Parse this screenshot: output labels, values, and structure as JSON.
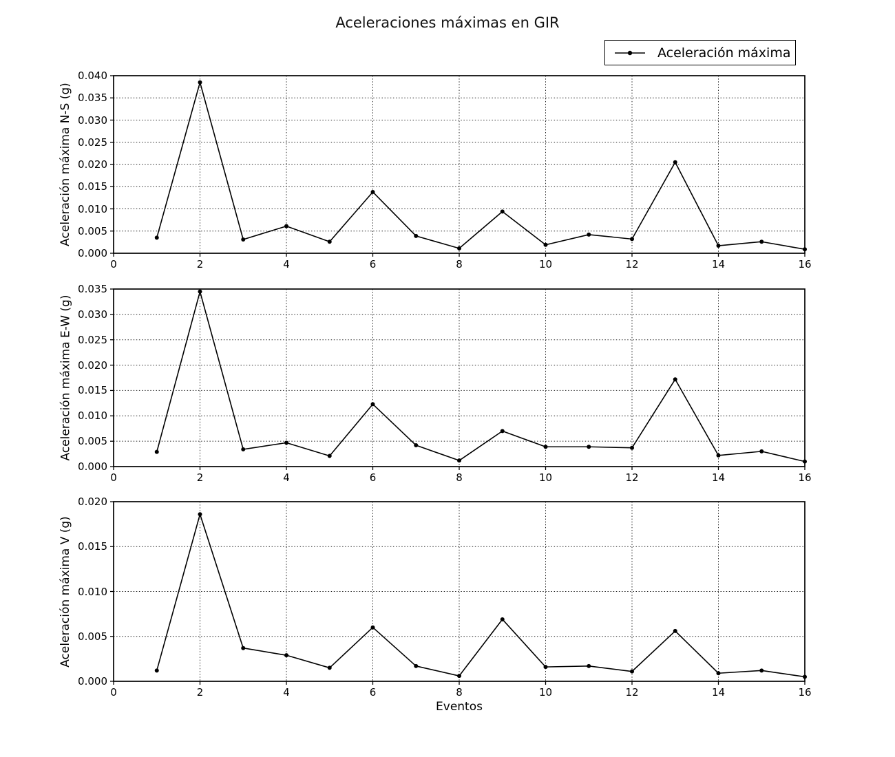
{
  "title": "Aceleraciones máximas en GIR",
  "legend": {
    "label": "Aceleración máxima",
    "position": "upper right"
  },
  "colors": {
    "line": "#000000",
    "marker": "#000000",
    "grid": "#000000",
    "spine": "#000000",
    "background": "#ffffff"
  },
  "chart_data": [
    {
      "type": "line",
      "ylabel": "Aceleración máxima N-S (g)",
      "xlabel": "",
      "x": [
        1,
        2,
        3,
        4,
        5,
        6,
        7,
        8,
        9,
        10,
        11,
        12,
        13,
        14,
        15,
        16
      ],
      "series": [
        {
          "name": "Aceleración máxima",
          "values": [
            0.0035,
            0.0385,
            0.0031,
            0.0061,
            0.0026,
            0.0138,
            0.0039,
            0.0011,
            0.0094,
            0.0019,
            0.0042,
            0.0032,
            0.0205,
            0.0017,
            0.0026,
            0.0009
          ]
        }
      ],
      "xlim": [
        0,
        16
      ],
      "ylim": [
        0,
        0.04
      ],
      "xticks": [
        "0",
        "2",
        "4",
        "6",
        "8",
        "10",
        "12",
        "14",
        "16"
      ],
      "yticks": [
        "0.000",
        "0.005",
        "0.010",
        "0.015",
        "0.020",
        "0.025",
        "0.030",
        "0.035",
        "0.040"
      ],
      "grid": "dotted",
      "marker": "point"
    },
    {
      "type": "line",
      "ylabel": "Aceleración máxima E-W (g)",
      "xlabel": "",
      "x": [
        1,
        2,
        3,
        4,
        5,
        6,
        7,
        8,
        9,
        10,
        11,
        12,
        13,
        14,
        15,
        16
      ],
      "series": [
        {
          "name": "Aceleración máxima",
          "values": [
            0.0029,
            0.0345,
            0.0034,
            0.0047,
            0.0021,
            0.0123,
            0.0042,
            0.0012,
            0.007,
            0.0039,
            0.0039,
            0.0037,
            0.0172,
            0.0022,
            0.003,
            0.001
          ]
        }
      ],
      "xlim": [
        0,
        16
      ],
      "ylim": [
        0,
        0.035
      ],
      "xticks": [
        "0",
        "2",
        "4",
        "6",
        "8",
        "10",
        "12",
        "14",
        "16"
      ],
      "yticks": [
        "0.000",
        "0.005",
        "0.010",
        "0.015",
        "0.020",
        "0.025",
        "0.030",
        "0.035"
      ],
      "grid": "dotted",
      "marker": "point"
    },
    {
      "type": "line",
      "ylabel": "Aceleración máxima V (g)",
      "xlabel": "Eventos",
      "x": [
        1,
        2,
        3,
        4,
        5,
        6,
        7,
        8,
        9,
        10,
        11,
        12,
        13,
        14,
        15,
        16
      ],
      "series": [
        {
          "name": "Aceleración máxima",
          "values": [
            0.0012,
            0.0186,
            0.0037,
            0.0029,
            0.0015,
            0.006,
            0.0017,
            0.0006,
            0.0069,
            0.0016,
            0.0017,
            0.0011,
            0.0056,
            0.0009,
            0.0012,
            0.0005
          ]
        }
      ],
      "xlim": [
        0,
        16
      ],
      "ylim": [
        0,
        0.02
      ],
      "xticks": [
        "0",
        "2",
        "4",
        "6",
        "8",
        "10",
        "12",
        "14",
        "16"
      ],
      "yticks": [
        "0.000",
        "0.005",
        "0.010",
        "0.015",
        "0.020"
      ],
      "grid": "dotted",
      "marker": "point"
    }
  ]
}
